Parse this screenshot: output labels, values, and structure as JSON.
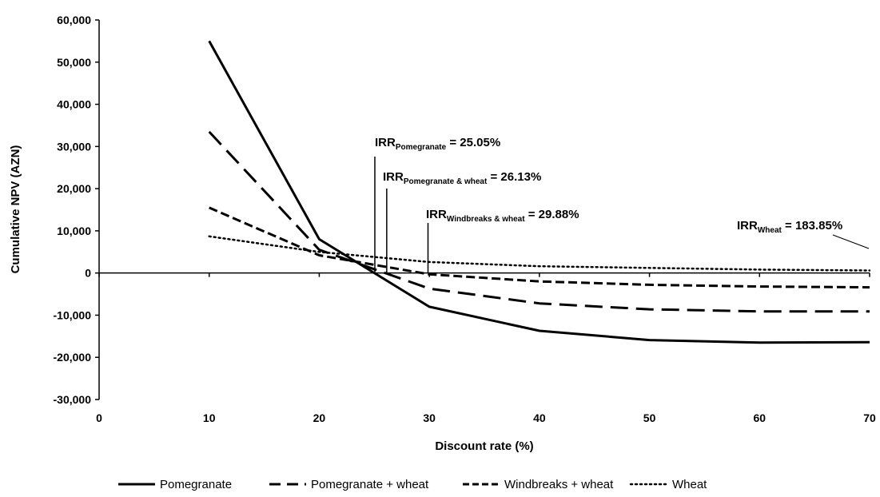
{
  "chart_data": {
    "type": "line",
    "title": "",
    "xlabel": "Discount rate (%)",
    "ylabel": "Cumulative NPV (AZN)",
    "xlim": [
      0,
      70
    ],
    "ylim": [
      -30000,
      60000
    ],
    "x_ticks": [
      0,
      10,
      20,
      30,
      40,
      50,
      60,
      70
    ],
    "y_ticks": [
      -30000,
      -20000,
      -10000,
      0,
      10000,
      20000,
      30000,
      40000,
      50000,
      60000
    ],
    "y_tick_labels": [
      "-30,000",
      "-20,000",
      "-10,000",
      "0",
      "10,000",
      "20,000",
      "30,000",
      "40,000",
      "50,000",
      "60,000"
    ],
    "grid": false,
    "legend_position": "bottom",
    "x": [
      10,
      20,
      30,
      40,
      50,
      60,
      70
    ],
    "series": [
      {
        "name": "Pomegranate",
        "style": "solid",
        "values": [
          55000,
          8000,
          -8000,
          -13700,
          -15900,
          -16500,
          -16400
        ]
      },
      {
        "name": "Pomegranate + wheat",
        "style": "long-dash",
        "values": [
          33500,
          5500,
          -3700,
          -7200,
          -8600,
          -9100,
          -9100
        ]
      },
      {
        "name": "Windbreaks + wheat",
        "style": "dash",
        "values": [
          15500,
          4200,
          -300,
          -2000,
          -2800,
          -3200,
          -3400
        ]
      },
      {
        "name": "Wheat",
        "style": "dotted",
        "values": [
          8700,
          5000,
          2600,
          1600,
          1200,
          800,
          600
        ]
      }
    ],
    "annotations": [
      {
        "main": "IRR",
        "sub": "Pomegranate",
        "tail": " = 25.05%",
        "x": 25.05
      },
      {
        "main": "IRR",
        "sub": "Pomegranate & wheat",
        "tail": " = 26.13%",
        "x": 26.13
      },
      {
        "main": "IRR",
        "sub": "Windbreaks & wheat",
        "tail": " = 29.88%",
        "x": 29.88
      },
      {
        "main": "IRR",
        "sub": "Wheat",
        "tail": " = 183.85%",
        "x": 183.85
      }
    ]
  }
}
